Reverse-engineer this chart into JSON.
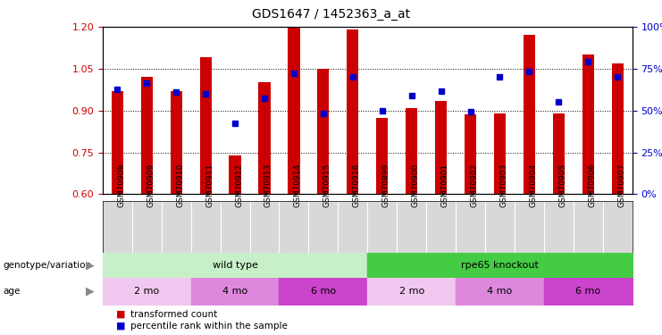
{
  "title": "GDS1647 / 1452363_a_at",
  "samples": [
    "GSM70908",
    "GSM70909",
    "GSM70910",
    "GSM70911",
    "GSM70912",
    "GSM70913",
    "GSM70914",
    "GSM70915",
    "GSM70916",
    "GSM70899",
    "GSM70900",
    "GSM70901",
    "GSM70902",
    "GSM70903",
    "GSM70904",
    "GSM70905",
    "GSM70906",
    "GSM70907"
  ],
  "red_values": [
    0.97,
    1.02,
    0.97,
    1.09,
    0.74,
    1.0,
    1.2,
    1.05,
    1.19,
    0.875,
    0.91,
    0.935,
    0.885,
    0.89,
    1.17,
    0.89,
    1.1,
    1.07
  ],
  "blue_values": [
    0.975,
    1.0,
    0.965,
    0.96,
    0.855,
    0.945,
    1.035,
    0.89,
    1.02,
    0.9,
    0.955,
    0.97,
    0.895,
    1.02,
    1.04,
    0.93,
    1.075,
    1.02
  ],
  "ylim_left": [
    0.6,
    1.2
  ],
  "ylim_right": [
    0,
    100
  ],
  "yticks_left": [
    0.6,
    0.75,
    0.9,
    1.05,
    1.2
  ],
  "yticks_right": [
    0,
    25,
    50,
    75,
    100
  ],
  "bar_color": "#cc0000",
  "dot_color": "#0000cc",
  "bar_bottom": 0.6,
  "genotype_groups": [
    {
      "label": "wild type",
      "start": 0,
      "end": 9,
      "color": "#c8f0c8"
    },
    {
      "label": "rpe65 knockout",
      "start": 9,
      "end": 18,
      "color": "#44cc44"
    }
  ],
  "age_groups": [
    {
      "label": "2 mo",
      "start": 0,
      "end": 3,
      "color": "#f0c8f0"
    },
    {
      "label": "4 mo",
      "start": 3,
      "end": 6,
      "color": "#dd88dd"
    },
    {
      "label": "6 mo",
      "start": 6,
      "end": 9,
      "color": "#cc44cc"
    },
    {
      "label": "2 mo",
      "start": 9,
      "end": 12,
      "color": "#f0c8f0"
    },
    {
      "label": "4 mo",
      "start": 12,
      "end": 15,
      "color": "#dd88dd"
    },
    {
      "label": "6 mo",
      "start": 15,
      "end": 18,
      "color": "#cc44cc"
    }
  ],
  "xtick_bg": "#d8d8d8",
  "legend_red_label": "transformed count",
  "legend_blue_label": "percentile rank within the sample",
  "genotype_label": "genotype/variation",
  "age_label": "age",
  "background_color": "#ffffff",
  "tick_label_color_left": "#cc0000",
  "tick_label_color_right": "#0000cc"
}
